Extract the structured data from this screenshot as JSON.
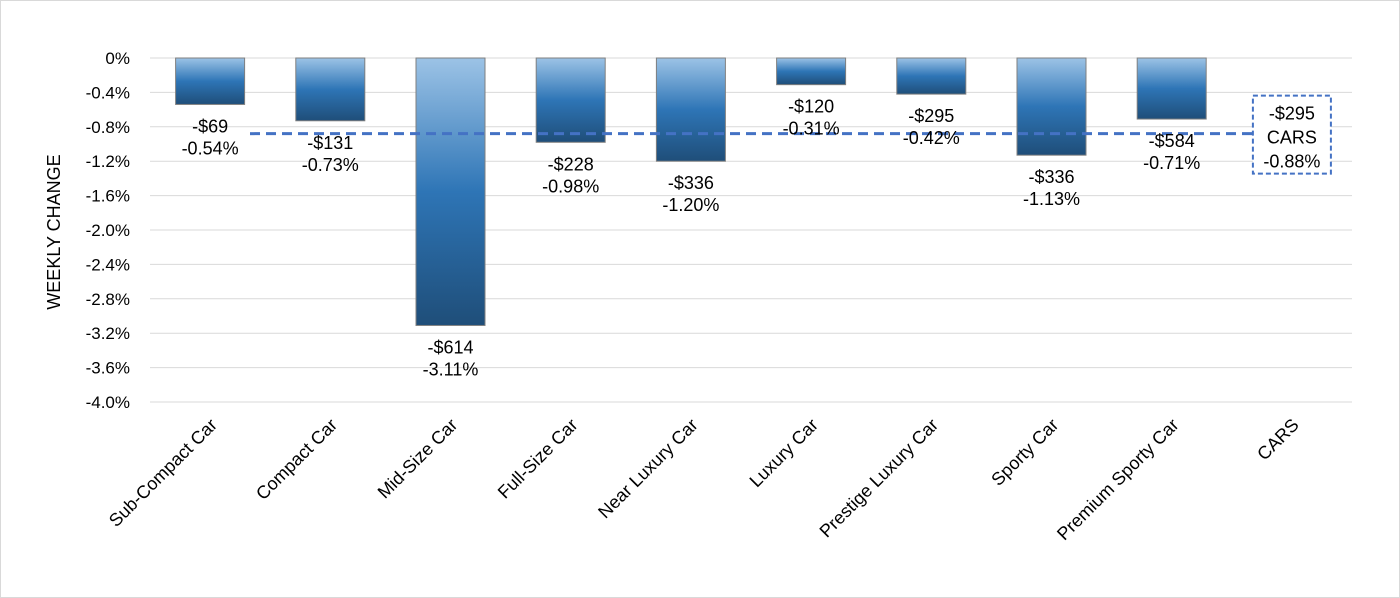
{
  "chart_data": {
    "type": "bar",
    "title": "",
    "xlabel": "",
    "ylabel": "WEEKLY CHANGE",
    "ylim": [
      -4.0,
      0
    ],
    "yticks": [
      0,
      -0.4,
      -0.8,
      -1.2,
      -1.6,
      -2.0,
      -2.4,
      -2.8,
      -3.2,
      -3.6,
      -4.0
    ],
    "ytick_labels": [
      "0%",
      "-0.4%",
      "-0.8%",
      "-1.2%",
      "-1.6%",
      "-2.0%",
      "-2.4%",
      "-2.8%",
      "-3.2%",
      "-3.6%",
      "-4.0%"
    ],
    "grid": true,
    "categories": [
      "Sub-Compact Car",
      "Compact Car",
      "Mid-Size Car",
      "Full-Size Car",
      "Near Luxury Car",
      "Luxury Car",
      "Prestige Luxury Car",
      "Sporty Car",
      "Premium Sporty Car",
      "CARS"
    ],
    "values": [
      -0.54,
      -0.73,
      -3.11,
      -0.98,
      -1.2,
      -0.31,
      -0.42,
      -1.13,
      -0.71,
      null
    ],
    "labels_dollar": [
      "-$69",
      "-$131",
      "-$614",
      "-$228",
      "-$336",
      "-$120",
      "-$295",
      "-$336",
      "-$584"
    ],
    "labels_pct": [
      "-0.54%",
      "-0.73%",
      "-3.11%",
      "-0.98%",
      "-1.20%",
      "-0.31%",
      "-0.42%",
      "-1.13%",
      "-0.71%"
    ],
    "reference_line": {
      "value": -0.88,
      "label_lines": [
        "-$295",
        "CARS",
        "-0.88%"
      ]
    },
    "colors": {
      "bar_top": "#9cc3e6",
      "bar_mid": "#2e75b6",
      "bar_bottom": "#1f4e79",
      "reference_line": "#4472c4",
      "grid": "#d9d9d9"
    }
  }
}
